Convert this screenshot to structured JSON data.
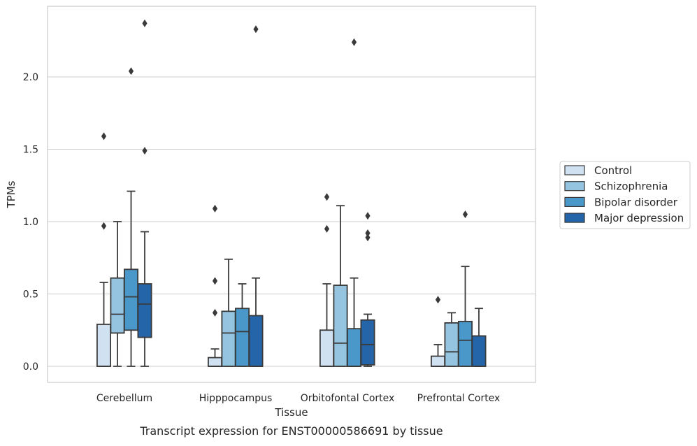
{
  "caption": "Transcript expression for ENST00000586691 by tissue",
  "chart_data": {
    "type": "boxplot",
    "xlabel": "Tissue",
    "ylabel": "TPMs",
    "ylim": [
      -0.12,
      2.48
    ],
    "yticks": [
      0.0,
      0.5,
      1.0,
      1.5,
      2.0
    ],
    "ytick_labels": [
      "0.0",
      "0.5",
      "1.0",
      "1.5",
      "2.0"
    ],
    "grid": "horizontal",
    "legend_position": "right-outside",
    "categories": [
      "Cerebellum",
      "Hipppocampus",
      "Orbitofontal Cortex",
      "Prefrontal Cortex"
    ],
    "series": [
      {
        "name": "Control",
        "color": "#d0e1f2",
        "boxes": [
          {
            "whislo": 0.0,
            "q1": 0.0,
            "med": 0.0,
            "q3": 0.29,
            "whishi": 0.58,
            "fliers": [
              0.97,
              1.59
            ]
          },
          {
            "whislo": 0.0,
            "q1": 0.0,
            "med": 0.0,
            "q3": 0.06,
            "whishi": 0.12,
            "fliers": [
              0.37,
              0.59,
              1.09
            ]
          },
          {
            "whislo": 0.0,
            "q1": 0.0,
            "med": 0.0,
            "q3": 0.25,
            "whishi": 0.57,
            "fliers": [
              0.95,
              1.17
            ]
          },
          {
            "whislo": 0.0,
            "q1": 0.0,
            "med": 0.0,
            "q3": 0.07,
            "whishi": 0.15,
            "fliers": [
              0.46
            ]
          }
        ]
      },
      {
        "name": "Schizophrenia",
        "color": "#94c4df",
        "boxes": [
          {
            "whislo": 0.0,
            "q1": 0.23,
            "med": 0.36,
            "q3": 0.61,
            "whishi": 1.0,
            "fliers": []
          },
          {
            "whislo": 0.0,
            "q1": 0.0,
            "med": 0.23,
            "q3": 0.38,
            "whishi": 0.74,
            "fliers": []
          },
          {
            "whislo": 0.0,
            "q1": 0.0,
            "med": 0.16,
            "q3": 0.56,
            "whishi": 1.11,
            "fliers": []
          },
          {
            "whislo": 0.0,
            "q1": 0.0,
            "med": 0.1,
            "q3": 0.3,
            "whishi": 0.37,
            "fliers": []
          }
        ]
      },
      {
        "name": "Bipolar disorder",
        "color": "#4a98c9",
        "boxes": [
          {
            "whislo": 0.0,
            "q1": 0.25,
            "med": 0.48,
            "q3": 0.67,
            "whishi": 1.21,
            "fliers": [
              2.04
            ]
          },
          {
            "whislo": 0.0,
            "q1": 0.0,
            "med": 0.24,
            "q3": 0.4,
            "whishi": 0.57,
            "fliers": []
          },
          {
            "whislo": 0.0,
            "q1": 0.0,
            "med": 0.0,
            "q3": 0.26,
            "whishi": 0.61,
            "fliers": [
              2.24
            ]
          },
          {
            "whislo": 0.0,
            "q1": 0.0,
            "med": 0.18,
            "q3": 0.31,
            "whishi": 0.69,
            "fliers": [
              1.05
            ]
          }
        ]
      },
      {
        "name": "Major depression",
        "color": "#2464a8",
        "boxes": [
          {
            "whislo": 0.0,
            "q1": 0.2,
            "med": 0.43,
            "q3": 0.57,
            "whishi": 0.93,
            "fliers": [
              1.49,
              2.37
            ]
          },
          {
            "whislo": 0.0,
            "q1": 0.0,
            "med": 0.0,
            "q3": 0.35,
            "whishi": 0.61,
            "fliers": [
              2.33
            ]
          },
          {
            "whislo": 0.0,
            "q1": 0.01,
            "med": 0.15,
            "q3": 0.32,
            "whishi": 0.36,
            "fliers": [
              0.89,
              0.92,
              1.04
            ]
          },
          {
            "whislo": 0.0,
            "q1": 0.0,
            "med": 0.0,
            "q3": 0.21,
            "whishi": 0.4,
            "fliers": []
          }
        ]
      }
    ]
  }
}
